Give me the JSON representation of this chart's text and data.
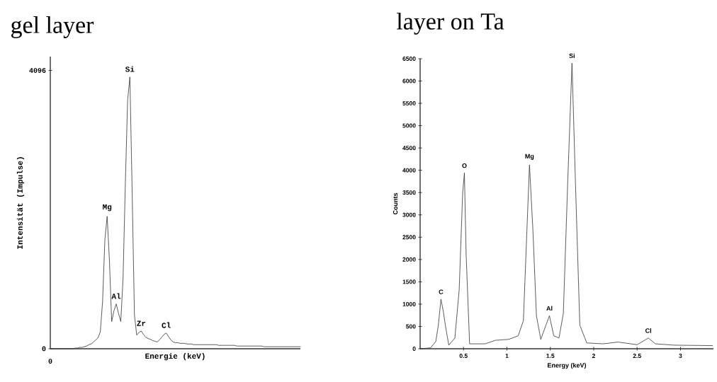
{
  "chart_data": [
    {
      "type": "line",
      "title": "gel layer",
      "xlabel": "Energie (keV)",
      "ylabel": "Intensität (Impulse)",
      "color": "#333333",
      "categories": [
        null,
        null,
        null,
        null,
        null,
        null,
        null,
        null,
        null,
        null,
        null,
        null,
        null,
        null,
        null,
        null,
        null,
        null,
        null,
        null,
        null,
        null,
        null,
        null,
        null,
        null,
        null,
        null,
        null,
        null,
        null,
        null,
        null,
        null,
        null,
        null,
        null,
        null,
        null,
        null,
        null,
        null,
        null,
        null,
        null,
        null,
        null,
        null,
        null,
        null,
        null,
        null,
        null,
        null,
        null,
        null,
        null,
        null,
        null,
        null,
        null,
        null,
        null,
        null,
        null,
        null,
        null,
        null,
        null,
        null,
        null,
        null,
        null,
        null,
        null,
        null,
        null,
        null,
        null,
        null,
        null,
        null,
        null,
        null,
        null,
        null,
        null,
        null,
        null,
        null,
        null,
        null,
        null,
        null,
        null,
        null,
        null,
        null,
        null,
        null,
        null,
        null,
        null,
        null,
        null,
        null,
        null,
        null,
        null,
        null,
        null
      ],
      "values": [
        0,
        0,
        0,
        0,
        0,
        0,
        0,
        0,
        0,
        0,
        0,
        10,
        10,
        20,
        20,
        30,
        40,
        60,
        70,
        100,
        130,
        160,
        250,
        700,
        1600,
        1950,
        1300,
        400,
        560,
        660,
        520,
        400,
        1040,
        2430,
        3650,
        4000,
        2300,
        500,
        200,
        240,
        260,
        210,
        170,
        150,
        140,
        120,
        110,
        100,
        130,
        170,
        210,
        230,
        180,
        130,
        100,
        90,
        90,
        80,
        80,
        80,
        70,
        70,
        70,
        60,
        60,
        60,
        60,
        60,
        60,
        60,
        60,
        60,
        60,
        60,
        50,
        50,
        50,
        50,
        50,
        50,
        50,
        50,
        40,
        40,
        40,
        40,
        40,
        40,
        40,
        40,
        40,
        40,
        40,
        40,
        30,
        30,
        30,
        30,
        30,
        30,
        30,
        30,
        30,
        30,
        30,
        30,
        30,
        30,
        30,
        30,
        30
      ],
      "ylim": [
        0,
        4300
      ],
      "yticks": [
        0,
        4096
      ],
      "annotations": [
        "0",
        {
          "text": "Mg",
          "y": 1950
        },
        {
          "text": "Al",
          "y": 660
        },
        {
          "text": "Si",
          "y": 4000
        },
        {
          "text": "Zr",
          "y": 260
        },
        {
          "text": "Cl",
          "y": 230
        }
      ]
    },
    {
      "type": "line",
      "title": "layer on Ta",
      "xlabel": "Energy (keV)",
      "ylabel": "Counts",
      "color": "#333333",
      "x": [
        0,
        0.12,
        0.18,
        0.21,
        0.24,
        0.27,
        0.29,
        0.33,
        0.4,
        0.45,
        0.49,
        0.51,
        0.53,
        0.57,
        0.75,
        0.87,
        1.02,
        1.13,
        1.19,
        1.23,
        1.26,
        1.3,
        1.34,
        1.39,
        1.45,
        1.49,
        1.54,
        1.6,
        1.65,
        1.7,
        1.75,
        1.79,
        1.84,
        1.92,
        2.11,
        2.28,
        2.5,
        2.63,
        2.71,
        2.93,
        3.37
      ],
      "values": [
        0,
        20,
        160,
        530,
        1110,
        800,
        530,
        80,
        240,
        1320,
        3490,
        3940,
        2110,
        110,
        110,
        190,
        210,
        290,
        630,
        2640,
        4120,
        2640,
        740,
        210,
        530,
        740,
        290,
        240,
        790,
        3700,
        6400,
        3700,
        530,
        130,
        110,
        150,
        90,
        240,
        110,
        80,
        70
      ],
      "xlim": [
        0,
        3.38
      ],
      "ylim": [
        0,
        6500
      ],
      "xticks": [
        0.5,
        1,
        1.5,
        2,
        2.5,
        3
      ],
      "yticks": [
        0,
        500,
        1000,
        1500,
        2000,
        2500,
        3000,
        3500,
        4000,
        4500,
        5000,
        5500,
        6000,
        6500
      ],
      "annotations": [
        {
          "text": "C",
          "x": 0.24,
          "y": 1110
        },
        {
          "text": "O",
          "x": 0.51,
          "y": 3940
        },
        {
          "text": "Mg",
          "x": 1.26,
          "y": 4120
        },
        {
          "text": "Al",
          "x": 1.49,
          "y": 740
        },
        {
          "text": "Si",
          "x": 1.75,
          "y": 6400
        },
        {
          "text": "Cl",
          "x": 2.63,
          "y": 240
        }
      ]
    }
  ]
}
